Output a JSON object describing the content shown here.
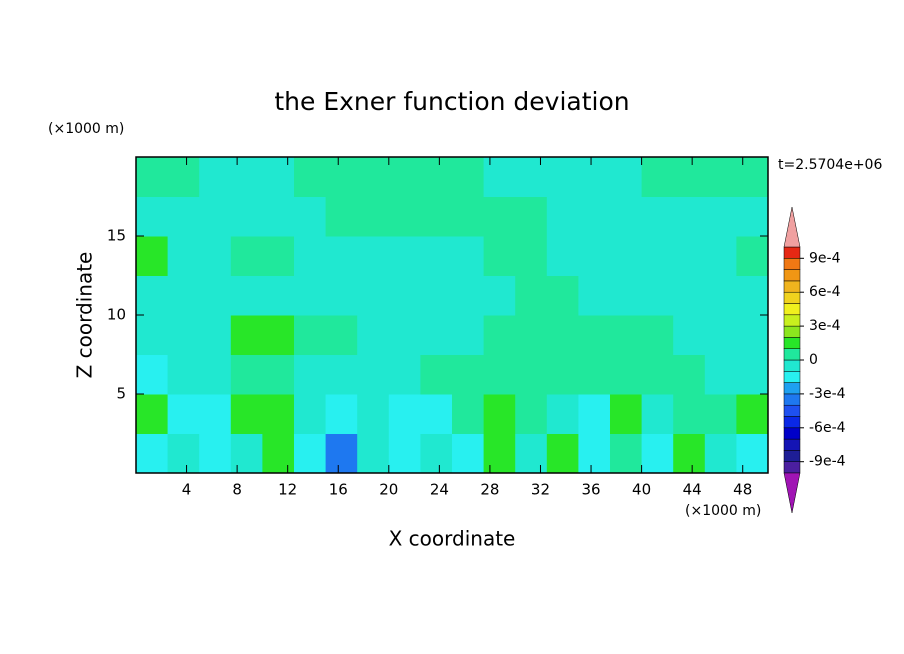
{
  "chart_data": {
    "type": "contour",
    "title": "the Exner function deviation",
    "x_label": "X coordinate",
    "y_label": "Z coordinate",
    "x_unit": "(×1000 m)",
    "y_unit": "(×1000 m)",
    "time_label": "t=2.5704e+06",
    "xlim": [
      0,
      50
    ],
    "ylim": [
      0,
      20
    ],
    "xticks": [
      4,
      8,
      12,
      16,
      20,
      24,
      28,
      32,
      36,
      40,
      44,
      48
    ],
    "yticks": [
      5,
      10,
      15
    ],
    "x": [
      1.25,
      3.75,
      6.25,
      8.75,
      11.25,
      13.75,
      16.25,
      18.75,
      21.25,
      23.75,
      26.25,
      28.75,
      31.25,
      33.75,
      36.25,
      38.75,
      41.25,
      43.75,
      46.25,
      48.75
    ],
    "y": [
      1.25,
      3.75,
      6.25,
      8.75,
      11.25,
      13.75,
      16.25,
      18.75
    ],
    "z": [
      [
        -0.00015,
        -5e-05,
        -0.00015,
        -5e-05,
        0.00015,
        -0.00015,
        -0.00035,
        -5e-05,
        -0.00015,
        -5e-05,
        -0.00015,
        0.00015,
        -5e-05,
        0.00015,
        -0.00015,
        5e-05,
        -0.00015,
        0.00015,
        -5e-05,
        -0.00015
      ],
      [
        0.00015,
        -0.00015,
        -0.00015,
        0.00015,
        0.00015,
        -5e-05,
        -0.00015,
        -5e-05,
        -0.00015,
        -0.00015,
        5e-05,
        0.00015,
        5e-05,
        -5e-05,
        -0.00015,
        0.00015,
        -5e-05,
        5e-05,
        5e-05,
        0.00015
      ],
      [
        -0.00015,
        -5e-05,
        -5e-05,
        5e-05,
        5e-05,
        -5e-05,
        -5e-05,
        -5e-05,
        -5e-05,
        5e-05,
        5e-05,
        5e-05,
        5e-05,
        5e-05,
        5e-05,
        5e-05,
        5e-05,
        5e-05,
        -5e-05,
        -5e-05
      ],
      [
        -5e-05,
        -5e-05,
        -5e-05,
        0.00015,
        0.00015,
        5e-05,
        5e-05,
        -5e-05,
        -5e-05,
        -5e-05,
        -5e-05,
        5e-05,
        5e-05,
        5e-05,
        5e-05,
        5e-05,
        5e-05,
        -5e-05,
        -5e-05,
        -5e-05
      ],
      [
        -5e-05,
        -5e-05,
        -5e-05,
        -5e-05,
        -5e-05,
        -5e-05,
        -5e-05,
        -5e-05,
        -5e-05,
        -5e-05,
        -5e-05,
        -5e-05,
        5e-05,
        5e-05,
        -5e-05,
        -5e-05,
        -5e-05,
        -5e-05,
        -5e-05,
        -5e-05
      ],
      [
        0.00015,
        -5e-05,
        -5e-05,
        5e-05,
        5e-05,
        -5e-05,
        -5e-05,
        -5e-05,
        -5e-05,
        -5e-05,
        -5e-05,
        5e-05,
        5e-05,
        -5e-05,
        -5e-05,
        -5e-05,
        -5e-05,
        -5e-05,
        -5e-05,
        5e-05
      ],
      [
        -5e-05,
        -5e-05,
        -5e-05,
        -5e-05,
        -5e-05,
        -5e-05,
        5e-05,
        5e-05,
        5e-05,
        5e-05,
        5e-05,
        5e-05,
        5e-05,
        -5e-05,
        -5e-05,
        -5e-05,
        -5e-05,
        -5e-05,
        -5e-05,
        -5e-05
      ],
      [
        5e-05,
        5e-05,
        -5e-05,
        -5e-05,
        -5e-05,
        5e-05,
        5e-05,
        5e-05,
        5e-05,
        5e-05,
        5e-05,
        -5e-05,
        -5e-05,
        -5e-05,
        -5e-05,
        -5e-05,
        5e-05,
        5e-05,
        5e-05,
        5e-05
      ]
    ],
    "colorbar": {
      "levels": [
        -0.001,
        -0.0009,
        -0.0008,
        -0.0007,
        -0.0006,
        -0.0005,
        -0.0004,
        -0.0003,
        -0.0002,
        -0.0001,
        0,
        0.0001,
        0.0002,
        0.0003,
        0.0004,
        0.0005,
        0.0006,
        0.0007,
        0.0008,
        0.0009,
        0.001
      ],
      "colors": [
        "#4b1fa0",
        "#1e1e96",
        "#1414b4",
        "#0000c8",
        "#0a28e6",
        "#1e50f0",
        "#1e78f0",
        "#1ea0f0",
        "#28f0f0",
        "#20e8d0",
        "#20e89c",
        "#28e628",
        "#8ce61e",
        "#c8f01e",
        "#f0f01e",
        "#f0d21e",
        "#f0b41e",
        "#f09614",
        "#f07814",
        "#e62814"
      ],
      "extend_colors": [
        "#a014b4",
        "#f0a0a0"
      ],
      "ticks": [
        {
          "value": -0.0009,
          "label": "-9e-4"
        },
        {
          "value": -0.0006,
          "label": "-6e-4"
        },
        {
          "value": -0.0003,
          "label": "-3e-4"
        },
        0,
        {
          "value": 0.0003,
          "label": "3e-4"
        },
        {
          "value": 0.0006,
          "label": "6e-4"
        },
        {
          "value": 0.0009,
          "label": "9e-4"
        }
      ]
    }
  }
}
